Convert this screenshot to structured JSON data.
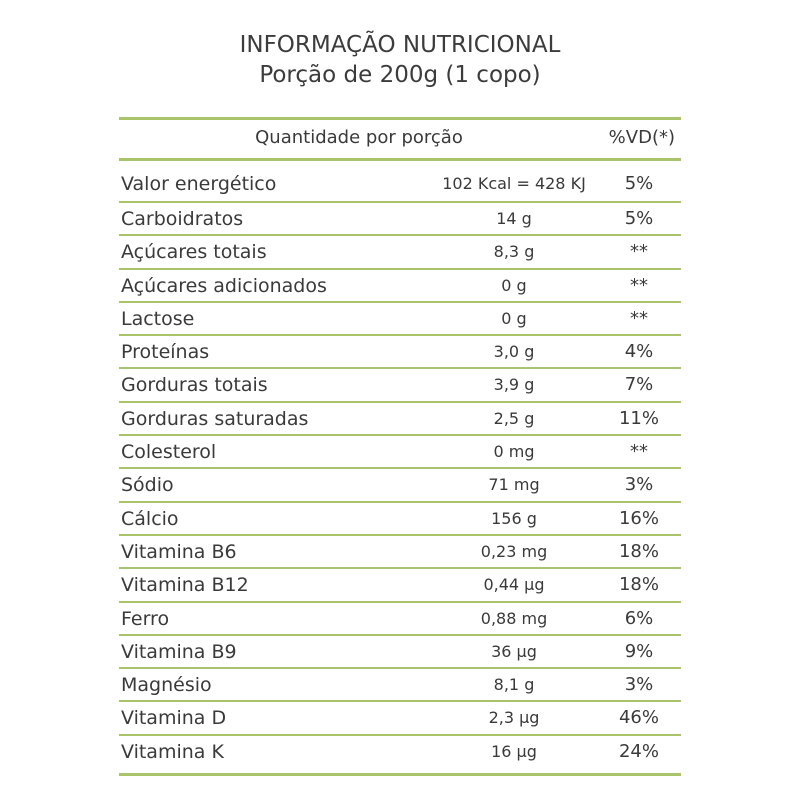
{
  "header": {
    "title": "INFORMAÇÃO NUTRICIONAL",
    "subtitle": "Porção de 200g (1 copo)"
  },
  "table": {
    "column_quantity": "Quantidade por porção",
    "column_vd": "%VD(*)",
    "rows": [
      {
        "name": "Valor energético",
        "value": "102 Kcal = 428 KJ",
        "vd": "5%"
      },
      {
        "name": "Carboidratos",
        "value": "14 g",
        "vd": "5%"
      },
      {
        "name": "Açúcares totais",
        "value": "8,3 g",
        "vd": "**"
      },
      {
        "name": "Açúcares adicionados",
        "value": "0 g",
        "vd": "**"
      },
      {
        "name": "Lactose",
        "value": "0 g",
        "vd": "**"
      },
      {
        "name": "Proteínas",
        "value": "3,0 g",
        "vd": "4%"
      },
      {
        "name": "Gorduras totais",
        "value": "3,9 g",
        "vd": "7%"
      },
      {
        "name": "Gorduras saturadas",
        "value": "2,5 g",
        "vd": "11%"
      },
      {
        "name": "Colesterol",
        "value": "0 mg",
        "vd": "**"
      },
      {
        "name": "Sódio",
        "value": "71 mg",
        "vd": "3%"
      },
      {
        "name": "Cálcio",
        "value": "156 g",
        "vd": "16%"
      },
      {
        "name": "Vitamina B6",
        "value": "0,23 mg",
        "vd": "18%"
      },
      {
        "name": "Vitamina B12",
        "value": "0,44 µg",
        "vd": "18%"
      },
      {
        "name": "Ferro",
        "value": "0,88 mg",
        "vd": "6%"
      },
      {
        "name": "Vitamina B9",
        "value": "36 µg",
        "vd": "9%"
      },
      {
        "name": "Magnésio",
        "value": "8,1 g",
        "vd": "3%"
      },
      {
        "name": "Vitamina D",
        "value": "2,3 µg",
        "vd": "46%"
      },
      {
        "name": "Vitamina K",
        "value": "16 µg",
        "vd": "24%"
      }
    ]
  },
  "colors": {
    "rule": "#a9c46a",
    "text": "#3a3a3a"
  }
}
